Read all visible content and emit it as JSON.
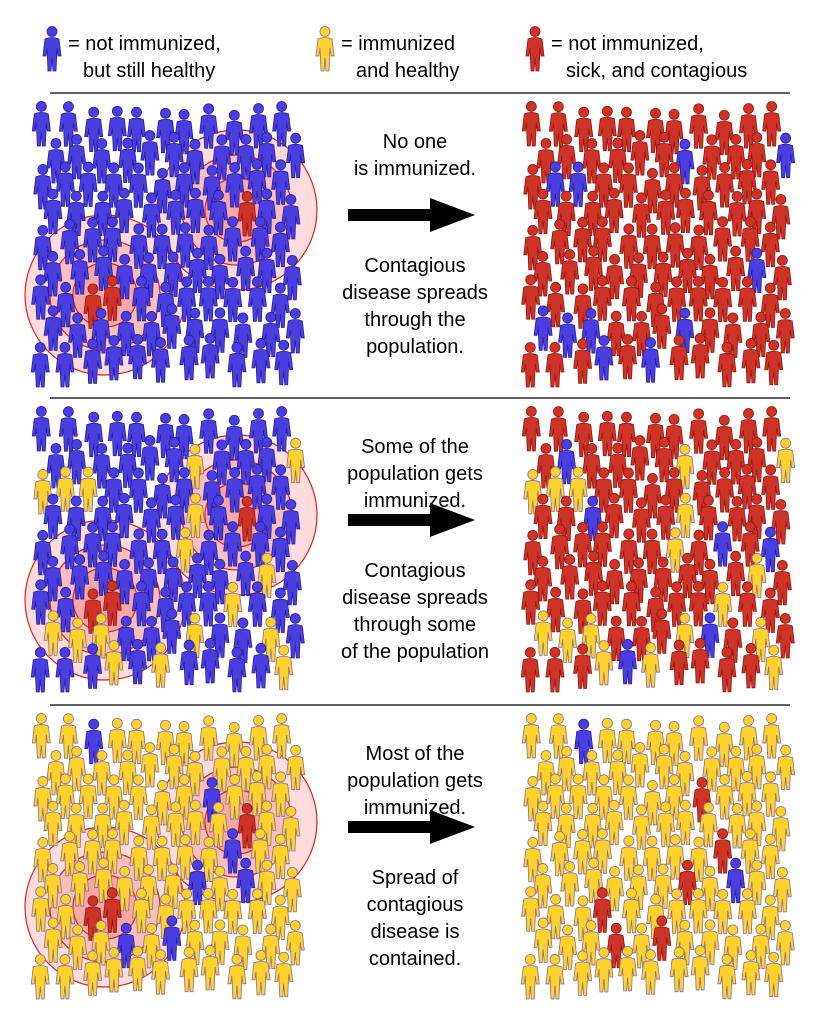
{
  "legend": [
    {
      "lines": [
        "= not immunized,",
        "but still healthy"
      ]
    },
    {
      "lines": [
        "= immunized",
        "and healthy"
      ]
    },
    {
      "lines": [
        "= not immunized,",
        "sick, and contagious"
      ]
    }
  ],
  "rows": [
    {
      "top": [
        "No one",
        "is immunized."
      ],
      "bottom": [
        "Contagious",
        "disease spreads",
        "through the",
        "population."
      ]
    },
    {
      "top": [
        "Some of the",
        "population gets",
        "immunized."
      ],
      "bottom": [
        "Contagious",
        "disease spreads",
        "through some",
        "of the population"
      ]
    },
    {
      "top": [
        "Most of the",
        "population gets",
        "immunized."
      ],
      "bottom": [
        "Spread of",
        "contagious",
        "disease is",
        "contained."
      ]
    }
  ]
}
